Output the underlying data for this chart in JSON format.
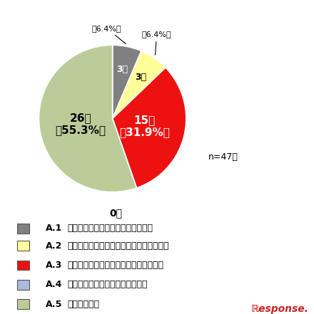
{
  "slices": [
    {
      "label": "A.1",
      "count": 3,
      "pct": 6.4,
      "color": "#808080",
      "text_color": "white"
    },
    {
      "label": "A.2",
      "count": 3,
      "pct": 6.4,
      "color": "#FFFF99",
      "text_color": "black"
    },
    {
      "label": "A.3",
      "count": 15,
      "pct": 31.9,
      "color": "#EE1111",
      "text_color": "white"
    },
    {
      "label": "A.4",
      "count": 0,
      "pct": 0.0,
      "color": "#AABBDD",
      "text_color": "black"
    },
    {
      "label": "A.5",
      "count": 26,
      "pct": 55.3,
      "color": "#BBCC99",
      "text_color": "black"
    }
  ],
  "n_label": "n=47⤶",
  "bottom_label": "0件",
  "legend_items": [
    {
      "key": "A.1",
      "color": "#808080",
      "text": "免許を取得させないよう促している"
    },
    {
      "key": "A.2",
      "color": "#FFFF99",
      "text": "一定の条件付きで許可するよう促している"
    },
    {
      "key": "A.3",
      "color": "#EE1111",
      "text": "免許取得についてとくに制限していない"
    },
    {
      "key": "A.4",
      "color": "#AABBDD",
      "text": "免許取得を認めるよう促している"
    },
    {
      "key": "A.5",
      "color": "#BBCC99",
      "text": "その他の方針"
    }
  ],
  "bg_color": "#ffffff",
  "figsize": [
    4.4,
    4.41
  ],
  "dpi": 100
}
